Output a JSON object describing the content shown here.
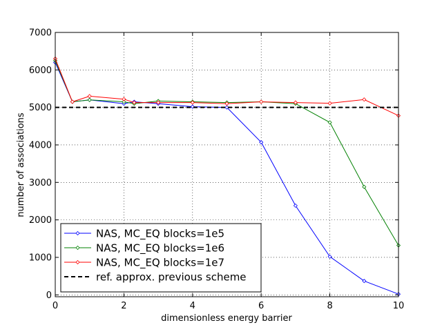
{
  "chart_data": {
    "type": "line",
    "title": "",
    "xlabel": "dimensionless energy barrier",
    "ylabel": "number of associations",
    "xlim": [
      0,
      10
    ],
    "ylim": [
      -50,
      7000
    ],
    "x_ticks": [
      0,
      2,
      4,
      6,
      8,
      10
    ],
    "y_ticks": [
      0,
      1000,
      2000,
      3000,
      4000,
      5000,
      6000,
      7000
    ],
    "grid": true,
    "legend_position": "lower-left",
    "series": [
      {
        "name": "NAS, MC_EQ blocks=1e5",
        "color": "#0000ff",
        "marker": "diamond",
        "x": [
          0,
          0.5,
          1,
          2,
          2.3,
          3,
          4,
          5,
          6,
          7,
          8,
          9,
          10
        ],
        "y": [
          6200,
          5150,
          5200,
          5100,
          5150,
          5100,
          5020,
          5000,
          4070,
          2380,
          1020,
          370,
          20
        ]
      },
      {
        "name": "NAS, MC_EQ blocks=1e6",
        "color": "#008000",
        "marker": "diamond",
        "x": [
          0,
          0.5,
          1,
          2,
          2.3,
          3,
          4,
          5,
          6,
          7,
          8,
          9,
          10
        ],
        "y": [
          6250,
          5150,
          5200,
          5150,
          5100,
          5170,
          5150,
          5130,
          5150,
          5100,
          4600,
          2880,
          1320
        ]
      },
      {
        "name": "NAS, MC_EQ blocks=1e7",
        "color": "#ff0000",
        "marker": "diamond",
        "x": [
          0,
          0.5,
          1,
          2,
          2.3,
          3,
          4,
          5,
          6,
          7,
          8,
          9,
          10
        ],
        "y": [
          6300,
          5150,
          5300,
          5220,
          5130,
          5130,
          5130,
          5100,
          5150,
          5130,
          5110,
          5210,
          4780
        ]
      },
      {
        "name": "ref. approx. previous scheme",
        "color": "#000000",
        "marker": "none",
        "dashed": true,
        "x": [
          0,
          10
        ],
        "y": [
          5000,
          5000
        ]
      }
    ]
  }
}
